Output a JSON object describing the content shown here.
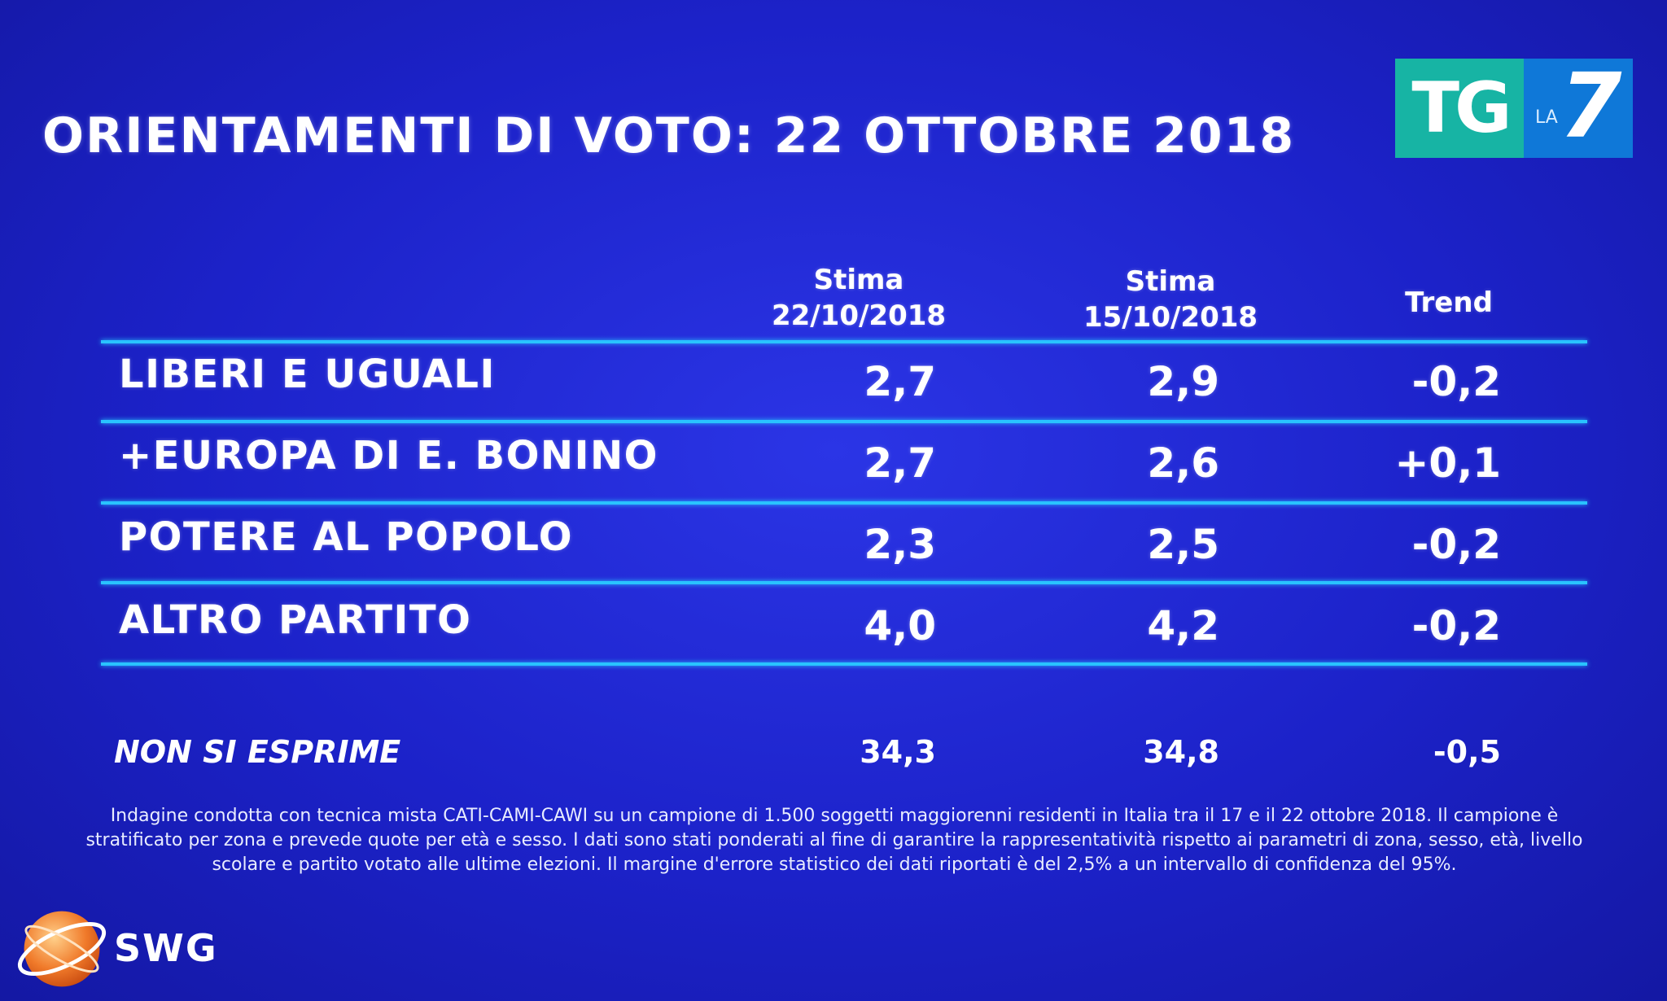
{
  "title": "ORIENTAMENTI DI VOTO: 22 OTTOBRE 2018",
  "logo": {
    "tg": "TG",
    "la": "LA",
    "seven": "7"
  },
  "columns": {
    "c1_line1": "Stima",
    "c1_line2": "22/10/2018",
    "c2_line1": "Stima",
    "c2_line2": "15/10/2018",
    "c3": "Trend"
  },
  "rows": [
    {
      "label": "LIBERI E UGUALI",
      "v1": "2,7",
      "v2": "2,9",
      "trend": "-0,2"
    },
    {
      "label": "+EUROPA DI E. BONINO",
      "v1": "2,7",
      "v2": "2,6",
      "trend": "+0,1"
    },
    {
      "label": "POTERE AL POPOLO",
      "v1": "2,3",
      "v2": "2,5",
      "trend": "-0,2"
    },
    {
      "label": "ALTRO PARTITO",
      "v1": "4,0",
      "v2": "4,2",
      "trend": "-0,2"
    }
  ],
  "non_si_esprime": {
    "label": "NON SI ESPRIME",
    "v1": "34,3",
    "v2": "34,8",
    "trend": "-0,5"
  },
  "note": {
    "line1": "Indagine condotta con tecnica mista CATI-CAMI-CAWI su un campione di 1.500 soggetti maggiorenni residenti in Italia tra il 17 e il 22 ottobre 2018. Il campione è",
    "line2": "stratificato per zona e prevede quote per età e sesso. I dati sono stati ponderati al fine di garantire la rappresentatività rispetto ai parametri di zona, sesso, età, livello",
    "line3": "scolare e partito votato alle ultime elezioni. Il margine d'errore statistico dei dati riportati è del 2,5% a un intervallo di confidenza del 95%."
  },
  "brand": {
    "name": "SWG",
    "logo_icon": "swg-globe-icon"
  },
  "colors": {
    "background": "#1c22c9",
    "rule": "#29c3ff",
    "tg_green": "#17b4a4",
    "la7_blue": "#0f78d8",
    "swg_orange": "#f07a2a"
  }
}
